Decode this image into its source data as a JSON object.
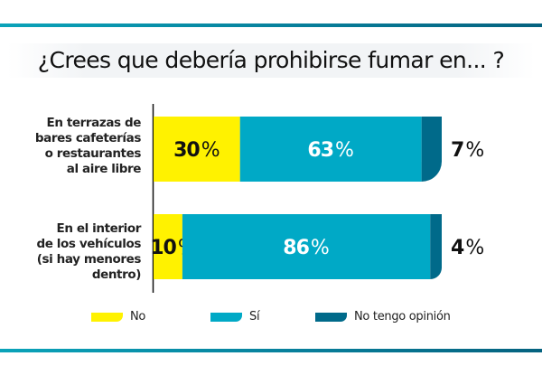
{
  "chart_data": {
    "type": "bar",
    "orientation": "horizontal",
    "stacked": true,
    "title": "¿Crees que debería prohibirse fumar en... ?",
    "xlabel": "",
    "ylabel": "",
    "xlim": [
      0,
      100
    ],
    "grid": false,
    "legend_position": "bottom",
    "categories": [
      "En terrazas de bares cafeterías o restaurantes al aire libre",
      "En el interior de los vehículos (si hay menores dentro)"
    ],
    "category_lines": [
      [
        "En terrazas de",
        "bares cafeterías",
        "o restaurantes",
        "al aire libre"
      ],
      [
        "En el interior",
        "de los vehículos",
        "(si hay menores dentro)"
      ]
    ],
    "series": [
      {
        "name": "No",
        "color": "#fff200",
        "values": [
          30,
          10
        ],
        "labels": [
          "30%",
          "10%"
        ],
        "label_color": "#111111"
      },
      {
        "name": "Sí",
        "color": "#00a9c6",
        "values": [
          63,
          86
        ],
        "labels": [
          "63%",
          "86%"
        ],
        "label_color": "#ffffff"
      },
      {
        "name": "No tengo opinión",
        "color": "#006a8a",
        "values": [
          7,
          4
        ],
        "labels": [
          "7%",
          "4%"
        ],
        "label_color": "#111111"
      }
    ]
  },
  "colors": {
    "accent_rule": "#077f9b",
    "axis": "#111111"
  }
}
